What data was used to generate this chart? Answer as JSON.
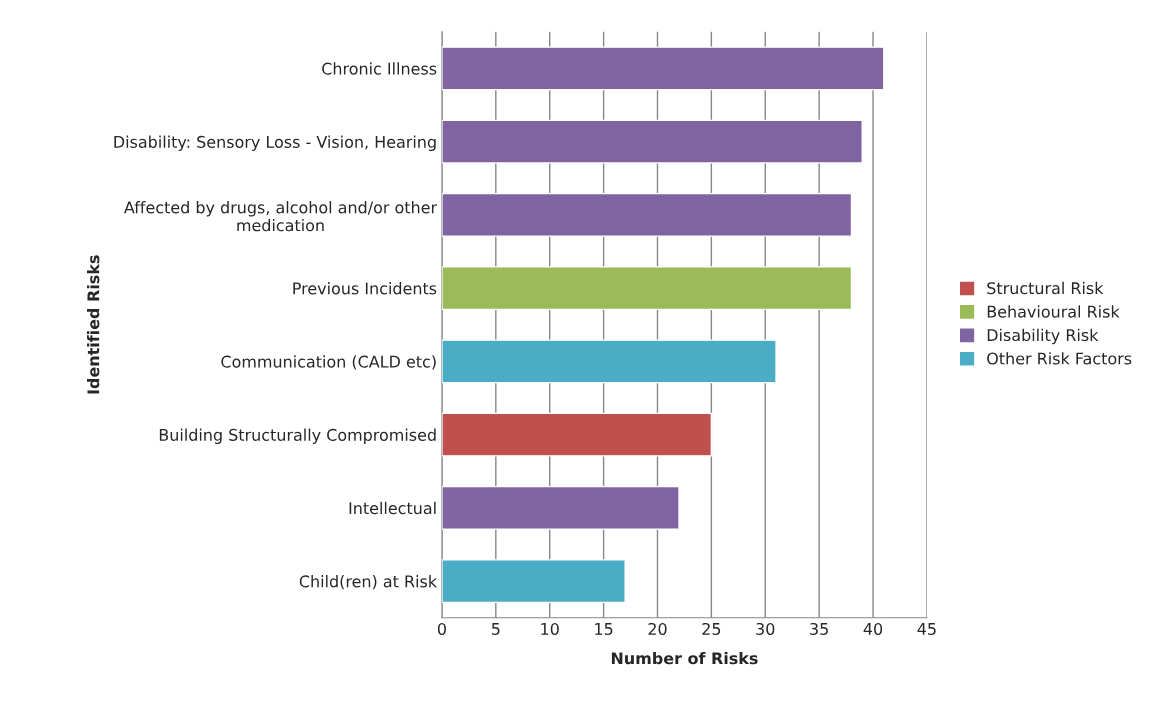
{
  "chart_data": {
    "type": "bar",
    "orientation": "horizontal",
    "categories": [
      "Chronic Illness",
      "Disability: Sensory Loss - Vision, Hearing",
      "Affected by drugs, alcohol and/or other\nmedication",
      "Previous Incidents",
      "Communication (CALD etc)",
      "Building Structurally Compromised",
      "Intellectual",
      "Child(ren) at Risk"
    ],
    "series": [
      {
        "name": "Structural Risk",
        "color": "#c0504d",
        "values": [
          null,
          null,
          null,
          null,
          null,
          25,
          null,
          null
        ]
      },
      {
        "name": "Behavioural Risk",
        "color": "#9bbb59",
        "values": [
          null,
          null,
          null,
          38,
          null,
          null,
          null,
          null
        ]
      },
      {
        "name": "Disability Risk",
        "color": "#8064a2",
        "values": [
          41,
          39,
          38,
          null,
          null,
          null,
          22,
          null
        ]
      },
      {
        "name": "Other Risk Factors",
        "color": "#4bacc6",
        "values": [
          null,
          null,
          null,
          null,
          31,
          null,
          null,
          17
        ]
      }
    ],
    "xlabel": "Number of Risks",
    "ylabel": "Identified Risks",
    "xlim": [
      0,
      45
    ],
    "xticks": [
      0,
      5,
      10,
      15,
      20,
      25,
      30,
      35,
      40,
      45
    ],
    "grid": "x",
    "legend": "right"
  }
}
